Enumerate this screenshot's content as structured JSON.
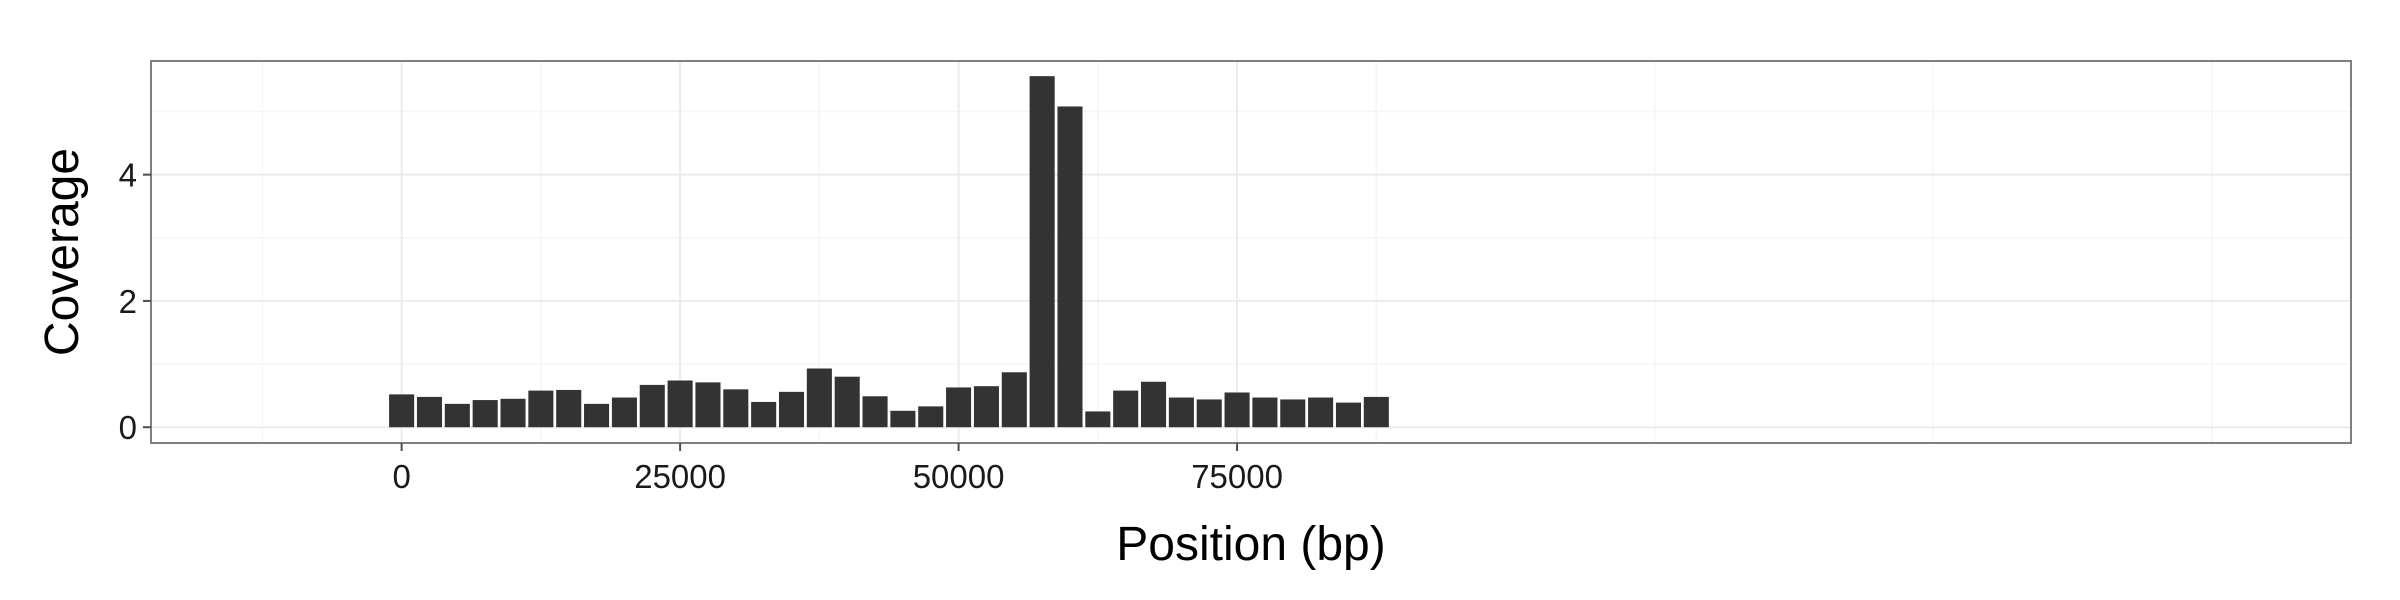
{
  "chart_data": {
    "type": "bar",
    "title": "",
    "xlabel": "Position (bp)",
    "ylabel": "Coverage",
    "xlim": [
      -22500,
      175000
    ],
    "ylim": [
      -0.25,
      5.8
    ],
    "grid": true,
    "x_ticks": [
      0,
      25000,
      50000,
      75000
    ],
    "x_tick_labels": [
      "0",
      "25000",
      "50000",
      "75000"
    ],
    "y_ticks": [
      0,
      2,
      4
    ],
    "y_tick_labels": [
      "0",
      "2",
      "4"
    ],
    "bin_width": 2500,
    "colors": {
      "bar": "#333333",
      "panel_border": "#7f7f7f",
      "grid_major": "#ebebeb",
      "grid_minor": "#f5f5f5"
    },
    "x": [
      0,
      2500,
      5000,
      7500,
      10000,
      12500,
      15000,
      17500,
      20000,
      22500,
      25000,
      27500,
      30000,
      32500,
      35000,
      37500,
      40000,
      42500,
      45000,
      47500,
      50000,
      52500,
      55000,
      57500,
      60000,
      62500,
      65000,
      67500,
      70000,
      72500,
      75000,
      77500,
      80000,
      82500,
      85000,
      87500
    ],
    "values": [
      0.52,
      0.48,
      0.37,
      0.43,
      0.45,
      0.58,
      0.59,
      0.37,
      0.47,
      0.67,
      0.74,
      0.71,
      0.6,
      0.4,
      0.56,
      0.93,
      0.8,
      0.49,
      0.26,
      0.33,
      0.63,
      0.65,
      0.87,
      5.56,
      5.08,
      0.25,
      0.58,
      0.72,
      0.47,
      0.44,
      0.55,
      0.47,
      0.44,
      0.47,
      0.39,
      0.48
    ]
  }
}
